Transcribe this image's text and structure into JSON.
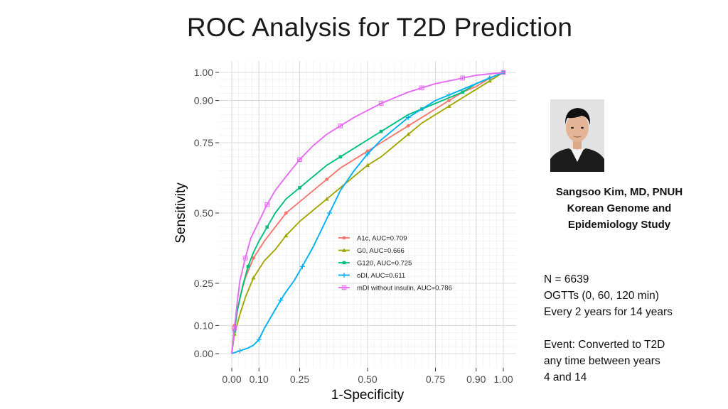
{
  "slide": {
    "title": "ROC Analysis for T2D Prediction"
  },
  "speaker": {
    "name_line": "Sangsoo Kim, MD, PNUH",
    "affiliation_line1": "Korean Genome and",
    "affiliation_line2": "Epidemiology Study"
  },
  "study": {
    "n": "N = 6639",
    "ogtt": "OGTTs (0, 60, 120 min)",
    "schedule": "Every 2 years for 14 years",
    "event_line1": "Event: Converted to T2D",
    "event_line2": "any time between years",
    "event_line3": "4 and 14"
  },
  "chart_data": {
    "type": "line",
    "title": "",
    "xlabel": "1-Specificity",
    "ylabel": "Sensitivity",
    "xlim": [
      0,
      1
    ],
    "ylim": [
      0,
      1
    ],
    "x_ticks": [
      0.0,
      0.1,
      0.25,
      0.5,
      0.75,
      0.9,
      1.0
    ],
    "x_tick_labels": [
      "0.00",
      "0.10",
      "0.25",
      "0.50",
      "0.75",
      "0.90",
      "1.00"
    ],
    "y_ticks": [
      0.0,
      0.1,
      0.25,
      0.5,
      0.75,
      0.9,
      1.0
    ],
    "y_tick_labels": [
      "0.00",
      "0.10",
      "0.25",
      "0.50",
      "0.75",
      "0.90",
      "1.00"
    ],
    "grid": true,
    "legend_position": "bottom-right",
    "series": [
      {
        "name": "A1c, AUC=0.709",
        "color": "#F8766D",
        "marker": "circle",
        "x": [
          0,
          0.01,
          0.03,
          0.05,
          0.08,
          0.12,
          0.16,
          0.2,
          0.25,
          0.3,
          0.35,
          0.4,
          0.45,
          0.5,
          0.55,
          0.6,
          0.65,
          0.7,
          0.75,
          0.8,
          0.85,
          0.9,
          0.95,
          1.0
        ],
        "y": [
          0,
          0.1,
          0.2,
          0.27,
          0.34,
          0.4,
          0.45,
          0.5,
          0.54,
          0.58,
          0.62,
          0.66,
          0.69,
          0.72,
          0.75,
          0.78,
          0.81,
          0.84,
          0.87,
          0.9,
          0.93,
          0.95,
          0.98,
          1.0
        ]
      },
      {
        "name": "G0, AUC=0.666",
        "color": "#A3A500",
        "marker": "triangle",
        "x": [
          0,
          0.01,
          0.03,
          0.05,
          0.08,
          0.12,
          0.16,
          0.2,
          0.25,
          0.3,
          0.35,
          0.4,
          0.45,
          0.5,
          0.55,
          0.6,
          0.65,
          0.7,
          0.75,
          0.8,
          0.85,
          0.9,
          0.95,
          1.0
        ],
        "y": [
          0,
          0.07,
          0.14,
          0.2,
          0.27,
          0.33,
          0.37,
          0.42,
          0.47,
          0.51,
          0.55,
          0.59,
          0.63,
          0.67,
          0.7,
          0.74,
          0.78,
          0.82,
          0.85,
          0.88,
          0.91,
          0.94,
          0.97,
          1.0
        ]
      },
      {
        "name": "G120, AUC=0.725",
        "color": "#00BF7D",
        "marker": "square",
        "x": [
          0,
          0.01,
          0.02,
          0.04,
          0.06,
          0.08,
          0.1,
          0.13,
          0.16,
          0.2,
          0.25,
          0.3,
          0.35,
          0.4,
          0.45,
          0.5,
          0.55,
          0.6,
          0.65,
          0.7,
          0.75,
          0.8,
          0.85,
          0.9,
          0.95,
          1.0
        ],
        "y": [
          0,
          0.08,
          0.15,
          0.24,
          0.31,
          0.36,
          0.4,
          0.45,
          0.5,
          0.55,
          0.59,
          0.63,
          0.67,
          0.7,
          0.73,
          0.76,
          0.79,
          0.82,
          0.85,
          0.87,
          0.89,
          0.91,
          0.93,
          0.96,
          0.98,
          1.0
        ]
      },
      {
        "name": "oDI, AUC=0.611",
        "color": "#00B0F6",
        "marker": "plus",
        "x": [
          0,
          0.03,
          0.06,
          0.08,
          0.1,
          0.12,
          0.15,
          0.18,
          0.2,
          0.23,
          0.26,
          0.3,
          0.33,
          0.36,
          0.4,
          0.45,
          0.5,
          0.55,
          0.6,
          0.65,
          0.7,
          0.75,
          0.8,
          0.85,
          0.9,
          0.95,
          1.0
        ],
        "y": [
          0,
          0.01,
          0.02,
          0.03,
          0.05,
          0.09,
          0.14,
          0.19,
          0.22,
          0.26,
          0.31,
          0.38,
          0.44,
          0.5,
          0.58,
          0.65,
          0.71,
          0.76,
          0.8,
          0.84,
          0.87,
          0.9,
          0.92,
          0.94,
          0.96,
          0.98,
          1.0
        ]
      },
      {
        "name": "mDI without insulin, AUC=0.786",
        "color": "#E76BF3",
        "marker": "boxplus",
        "x": [
          0,
          0.01,
          0.02,
          0.03,
          0.05,
          0.07,
          0.1,
          0.13,
          0.16,
          0.2,
          0.25,
          0.3,
          0.35,
          0.4,
          0.45,
          0.5,
          0.55,
          0.6,
          0.65,
          0.7,
          0.75,
          0.8,
          0.85,
          0.9,
          0.95,
          1.0
        ],
        "y": [
          0,
          0.09,
          0.18,
          0.26,
          0.34,
          0.41,
          0.47,
          0.53,
          0.58,
          0.63,
          0.69,
          0.74,
          0.78,
          0.81,
          0.84,
          0.865,
          0.89,
          0.91,
          0.93,
          0.945,
          0.96,
          0.97,
          0.98,
          0.99,
          0.995,
          1.0
        ]
      }
    ]
  }
}
